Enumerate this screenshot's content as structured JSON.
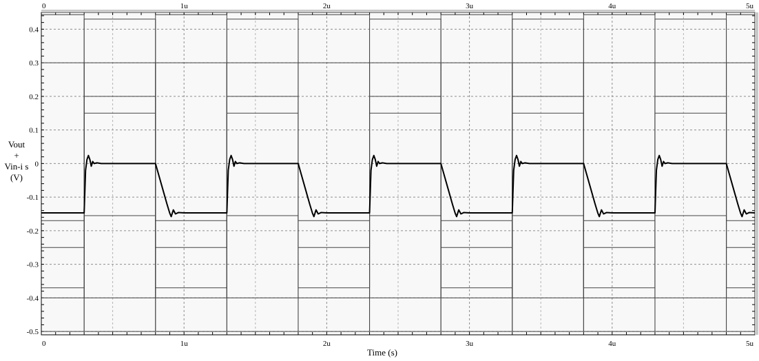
{
  "chart_data": {
    "type": "line",
    "xlabel": "Time (s)",
    "ylabel_lines": [
      "Vout",
      "+",
      "Vin-i s",
      "(V)"
    ],
    "xlim": [
      0,
      5e-06
    ],
    "ylim": [
      -0.51,
      0.45
    ],
    "x_ticks": [
      0,
      1e-06,
      2e-06,
      3e-06,
      4e-06,
      5e-06
    ],
    "x_tick_labels": [
      "0",
      "1u",
      "2u",
      "3u",
      "4u",
      "5u"
    ],
    "y_ticks": [
      0.4,
      0.3,
      0.2,
      0.1,
      0,
      -0.1,
      -0.2,
      -0.3,
      -0.4,
      -0.5
    ],
    "y_tick_labels": [
      "0.4",
      "0.3",
      "0.2",
      "0.1",
      "0",
      "-0.1",
      "-0.2",
      "-0.3",
      "-0.4",
      "-0.5"
    ],
    "grid": true,
    "background": "#f8f8f8",
    "series": [
      {
        "style": "thin-gray",
        "color": "#444444",
        "points": [
          [
            0,
            0.443
          ],
          [
            3e-07,
            0.443
          ],
          [
            3e-07,
            -0.5
          ],
          [
            8e-07,
            -0.5
          ],
          [
            8e-07,
            0.443
          ],
          [
            1.3e-06,
            0.443
          ],
          [
            1.3e-06,
            -0.5
          ],
          [
            1.8e-06,
            -0.5
          ],
          [
            1.8e-06,
            0.443
          ],
          [
            2.3e-06,
            0.443
          ],
          [
            2.3e-06,
            -0.5
          ],
          [
            2.8e-06,
            -0.5
          ],
          [
            2.8e-06,
            0.443
          ],
          [
            3.3e-06,
            0.443
          ],
          [
            3.3e-06,
            -0.5
          ],
          [
            3.8e-06,
            -0.5
          ],
          [
            3.8e-06,
            0.443
          ],
          [
            4.3e-06,
            0.443
          ],
          [
            4.3e-06,
            -0.5
          ],
          [
            4.8e-06,
            -0.5
          ],
          [
            4.8e-06,
            0.443
          ],
          [
            5e-06,
            0.443
          ]
        ]
      },
      {
        "style": "thin-gray",
        "color": "#444444",
        "points": [
          [
            0,
            -0.5
          ],
          [
            3e-07,
            -0.5
          ],
          [
            3e-07,
            0.43
          ],
          [
            8e-07,
            0.43
          ],
          [
            8e-07,
            -0.5
          ],
          [
            1.3e-06,
            -0.5
          ],
          [
            1.3e-06,
            0.43
          ],
          [
            1.8e-06,
            0.43
          ],
          [
            1.8e-06,
            -0.5
          ],
          [
            2.3e-06,
            -0.5
          ],
          [
            2.3e-06,
            0.43
          ],
          [
            2.8e-06,
            0.43
          ],
          [
            2.8e-06,
            -0.5
          ],
          [
            3.3e-06,
            -0.5
          ],
          [
            3.3e-06,
            0.43
          ],
          [
            3.8e-06,
            0.43
          ],
          [
            3.8e-06,
            -0.5
          ],
          [
            4.3e-06,
            -0.5
          ],
          [
            4.3e-06,
            0.43
          ],
          [
            4.8e-06,
            0.43
          ],
          [
            4.8e-06,
            -0.5
          ],
          [
            5e-06,
            -0.5
          ]
        ]
      },
      {
        "style": "thin-gray",
        "color": "#444444",
        "points": [
          [
            0,
            0.3
          ],
          [
            3e-07,
            0.3
          ],
          [
            3e-07,
            -0.4
          ],
          [
            8e-07,
            -0.4
          ],
          [
            8e-07,
            0.3
          ],
          [
            1.3e-06,
            0.3
          ],
          [
            1.3e-06,
            -0.4
          ],
          [
            1.8e-06,
            -0.4
          ],
          [
            1.8e-06,
            0.3
          ],
          [
            2.3e-06,
            0.3
          ],
          [
            2.3e-06,
            -0.4
          ],
          [
            2.8e-06,
            -0.4
          ],
          [
            2.8e-06,
            0.3
          ],
          [
            3.3e-06,
            0.3
          ],
          [
            3.3e-06,
            -0.4
          ],
          [
            3.8e-06,
            -0.4
          ],
          [
            3.8e-06,
            0.3
          ],
          [
            4.3e-06,
            0.3
          ],
          [
            4.3e-06,
            -0.4
          ],
          [
            4.8e-06,
            -0.4
          ],
          [
            4.8e-06,
            0.3
          ],
          [
            5e-06,
            0.3
          ]
        ]
      },
      {
        "style": "thin-gray",
        "color": "#444444",
        "points": [
          [
            0,
            -0.4
          ],
          [
            3e-07,
            -0.4
          ],
          [
            3e-07,
            0.3
          ],
          [
            8e-07,
            0.3
          ],
          [
            8e-07,
            -0.4
          ],
          [
            1.3e-06,
            -0.4
          ],
          [
            1.3e-06,
            0.3
          ],
          [
            1.8e-06,
            0.3
          ],
          [
            1.8e-06,
            -0.4
          ],
          [
            2.3e-06,
            -0.4
          ],
          [
            2.3e-06,
            0.3
          ],
          [
            2.8e-06,
            0.3
          ],
          [
            2.8e-06,
            -0.4
          ],
          [
            3.3e-06,
            -0.4
          ],
          [
            3.3e-06,
            0.3
          ],
          [
            3.8e-06,
            0.3
          ],
          [
            3.8e-06,
            -0.4
          ],
          [
            4.3e-06,
            -0.4
          ],
          [
            4.3e-06,
            0.3
          ],
          [
            4.8e-06,
            0.3
          ],
          [
            4.8e-06,
            -0.4
          ],
          [
            5e-06,
            -0.4
          ]
        ]
      },
      {
        "style": "thin-gray",
        "color": "#444444",
        "points": [
          [
            0,
            -0.37
          ],
          [
            3e-07,
            -0.37
          ],
          [
            3e-07,
            0.2
          ],
          [
            8e-07,
            0.2
          ],
          [
            8e-07,
            -0.37
          ],
          [
            1.3e-06,
            -0.37
          ],
          [
            1.3e-06,
            0.2
          ],
          [
            1.8e-06,
            0.2
          ],
          [
            1.8e-06,
            -0.37
          ],
          [
            2.3e-06,
            -0.37
          ],
          [
            2.3e-06,
            0.2
          ],
          [
            2.8e-06,
            0.2
          ],
          [
            2.8e-06,
            -0.37
          ],
          [
            3.3e-06,
            -0.37
          ],
          [
            3.3e-06,
            0.2
          ],
          [
            3.8e-06,
            0.2
          ],
          [
            3.8e-06,
            -0.37
          ],
          [
            4.3e-06,
            -0.37
          ],
          [
            4.3e-06,
            0.2
          ],
          [
            4.8e-06,
            0.2
          ],
          [
            4.8e-06,
            -0.37
          ],
          [
            5e-06,
            -0.37
          ]
        ]
      },
      {
        "style": "thin-gray",
        "color": "#444444",
        "points": [
          [
            0,
            -0.25
          ],
          [
            3e-07,
            -0.25
          ],
          [
            3e-07,
            0.15
          ],
          [
            8e-07,
            0.15
          ],
          [
            8e-07,
            -0.25
          ],
          [
            1.3e-06,
            -0.25
          ],
          [
            1.3e-06,
            0.15
          ],
          [
            1.8e-06,
            0.15
          ],
          [
            1.8e-06,
            -0.25
          ],
          [
            2.3e-06,
            -0.25
          ],
          [
            2.3e-06,
            0.15
          ],
          [
            2.8e-06,
            0.15
          ],
          [
            2.8e-06,
            -0.25
          ],
          [
            3.3e-06,
            -0.25
          ],
          [
            3.3e-06,
            0.15
          ],
          [
            3.8e-06,
            0.15
          ],
          [
            3.8e-06,
            -0.25
          ],
          [
            4.3e-06,
            -0.25
          ],
          [
            4.3e-06,
            0.15
          ],
          [
            4.8e-06,
            0.15
          ],
          [
            4.8e-06,
            -0.25
          ],
          [
            5e-06,
            -0.25
          ]
        ]
      },
      {
        "style": "thin-gray",
        "color": "#444444",
        "points": [
          [
            0,
            -0.17
          ],
          [
            3e-07,
            -0.17
          ],
          [
            3e-07,
            -0.155
          ],
          [
            8e-07,
            -0.155
          ],
          [
            8e-07,
            -0.17
          ],
          [
            1.3e-06,
            -0.17
          ],
          [
            1.3e-06,
            -0.155
          ],
          [
            1.8e-06,
            -0.155
          ],
          [
            1.8e-06,
            -0.17
          ],
          [
            2.3e-06,
            -0.17
          ],
          [
            2.3e-06,
            -0.155
          ],
          [
            2.8e-06,
            -0.155
          ],
          [
            2.8e-06,
            -0.17
          ],
          [
            3.3e-06,
            -0.17
          ],
          [
            3.3e-06,
            -0.155
          ],
          [
            3.8e-06,
            -0.155
          ],
          [
            3.8e-06,
            -0.17
          ],
          [
            4.3e-06,
            -0.17
          ],
          [
            4.3e-06,
            -0.155
          ],
          [
            4.8e-06,
            -0.155
          ],
          [
            4.8e-06,
            -0.17
          ],
          [
            5e-06,
            -0.17
          ]
        ]
      },
      {
        "style": "thick-black",
        "color": "#000000",
        "points": [
          [
            0,
            -0.147
          ],
          [
            3e-07,
            -0.147
          ],
          [
            3.1e-07,
            -0.02
          ],
          [
            3.2e-07,
            0.012
          ],
          [
            3.3e-07,
            0.024
          ],
          [
            3.4e-07,
            0.012
          ],
          [
            3.5e-07,
            -0.008
          ],
          [
            3.6e-07,
            0.006
          ],
          [
            3.7e-07,
            0.0
          ],
          [
            3.9e-07,
            0.002
          ],
          [
            4.2e-07,
            0.0
          ],
          [
            8e-07,
            0.0
          ],
          [
            8.2e-07,
            -0.03
          ],
          [
            8.5e-07,
            -0.075
          ],
          [
            8.8e-07,
            -0.12
          ],
          [
            9e-07,
            -0.148
          ],
          [
            9.1e-07,
            -0.158
          ],
          [
            9.25e-07,
            -0.138
          ],
          [
            9.4e-07,
            -0.15
          ],
          [
            9.6e-07,
            -0.146
          ],
          [
            1e-06,
            -0.147
          ],
          [
            1.3e-06,
            -0.147
          ],
          [
            1.31e-06,
            -0.02
          ],
          [
            1.32e-06,
            0.012
          ],
          [
            1.33e-06,
            0.024
          ],
          [
            1.34e-06,
            0.012
          ],
          [
            1.35e-06,
            -0.008
          ],
          [
            1.36e-06,
            0.006
          ],
          [
            1.37e-06,
            0.0
          ],
          [
            1.39e-06,
            0.002
          ],
          [
            1.42e-06,
            0.0
          ],
          [
            1.8e-06,
            0.0
          ],
          [
            1.82e-06,
            -0.03
          ],
          [
            1.85e-06,
            -0.075
          ],
          [
            1.88e-06,
            -0.12
          ],
          [
            1.9e-06,
            -0.148
          ],
          [
            1.91e-06,
            -0.158
          ],
          [
            1.925e-06,
            -0.138
          ],
          [
            1.94e-06,
            -0.15
          ],
          [
            1.96e-06,
            -0.146
          ],
          [
            2e-06,
            -0.147
          ],
          [
            2.3e-06,
            -0.147
          ],
          [
            2.31e-06,
            -0.02
          ],
          [
            2.32e-06,
            0.012
          ],
          [
            2.33e-06,
            0.024
          ],
          [
            2.34e-06,
            0.012
          ],
          [
            2.35e-06,
            -0.008
          ],
          [
            2.36e-06,
            0.006
          ],
          [
            2.37e-06,
            0.0
          ],
          [
            2.39e-06,
            0.002
          ],
          [
            2.42e-06,
            0.0
          ],
          [
            2.8e-06,
            0.0
          ],
          [
            2.82e-06,
            -0.03
          ],
          [
            2.85e-06,
            -0.075
          ],
          [
            2.88e-06,
            -0.12
          ],
          [
            2.9e-06,
            -0.148
          ],
          [
            2.91e-06,
            -0.158
          ],
          [
            2.925e-06,
            -0.138
          ],
          [
            2.94e-06,
            -0.15
          ],
          [
            2.96e-06,
            -0.146
          ],
          [
            3e-06,
            -0.147
          ],
          [
            3.3e-06,
            -0.147
          ],
          [
            3.31e-06,
            -0.02
          ],
          [
            3.32e-06,
            0.012
          ],
          [
            3.33e-06,
            0.024
          ],
          [
            3.34e-06,
            0.012
          ],
          [
            3.35e-06,
            -0.008
          ],
          [
            3.36e-06,
            0.006
          ],
          [
            3.37e-06,
            0.0
          ],
          [
            3.39e-06,
            0.002
          ],
          [
            3.42e-06,
            0.0
          ],
          [
            3.8e-06,
            0.0
          ],
          [
            3.82e-06,
            -0.03
          ],
          [
            3.85e-06,
            -0.075
          ],
          [
            3.88e-06,
            -0.12
          ],
          [
            3.9e-06,
            -0.148
          ],
          [
            3.91e-06,
            -0.158
          ],
          [
            3.925e-06,
            -0.138
          ],
          [
            3.94e-06,
            -0.15
          ],
          [
            3.96e-06,
            -0.146
          ],
          [
            4e-06,
            -0.147
          ],
          [
            4.3e-06,
            -0.147
          ],
          [
            4.31e-06,
            -0.02
          ],
          [
            4.32e-06,
            0.012
          ],
          [
            4.33e-06,
            0.024
          ],
          [
            4.34e-06,
            0.012
          ],
          [
            4.35e-06,
            -0.008
          ],
          [
            4.36e-06,
            0.006
          ],
          [
            4.37e-06,
            0.0
          ],
          [
            4.39e-06,
            0.002
          ],
          [
            4.42e-06,
            0.0
          ],
          [
            4.8e-06,
            0.0
          ],
          [
            4.82e-06,
            -0.03
          ],
          [
            4.85e-06,
            -0.075
          ],
          [
            4.88e-06,
            -0.12
          ],
          [
            4.9e-06,
            -0.148
          ],
          [
            4.91e-06,
            -0.158
          ],
          [
            4.925e-06,
            -0.138
          ],
          [
            4.94e-06,
            -0.15
          ],
          [
            4.96e-06,
            -0.146
          ],
          [
            5e-06,
            -0.147
          ]
        ]
      }
    ]
  }
}
